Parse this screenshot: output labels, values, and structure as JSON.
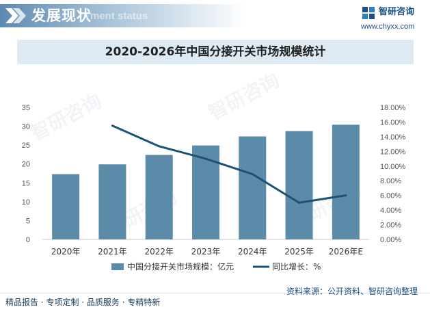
{
  "header": {
    "title": "发展现状",
    "subtitle": "ment status"
  },
  "brand": {
    "name": "智研咨询",
    "url": "www.chyxx.com"
  },
  "watermark": "智研咨询",
  "chart_data": {
    "type": "bar",
    "title": "2020-2026年中国分接开关市场规模统计",
    "categories": [
      "2020年",
      "2021年",
      "2022年",
      "2023年",
      "2024年",
      "2025年",
      "2026年E"
    ],
    "series": [
      {
        "name": "中国分接开关市场规模：亿元",
        "type": "bar",
        "axis": "left",
        "color": "#5b8ba9",
        "values": [
          17.3,
          19.9,
          22.4,
          24.9,
          27.3,
          28.7,
          30.4
        ]
      },
      {
        "name": "同比增长：%",
        "type": "line",
        "axis": "right",
        "color": "#1a5375",
        "values": [
          null,
          15.5,
          12.7,
          11.0,
          8.9,
          5.0,
          6.0
        ]
      }
    ],
    "y_left": {
      "min": 0,
      "max": 35,
      "ticks": [
        "0",
        "5",
        "10",
        "15",
        "20",
        "25",
        "30",
        "35"
      ]
    },
    "y_right": {
      "min": 0,
      "max": 18,
      "ticks": [
        "0.00%",
        "2.00%",
        "4.00%",
        "6.00%",
        "8.00%",
        "10.00%",
        "12.00%",
        "14.00%",
        "16.00%",
        "18.00%"
      ]
    },
    "grid": false,
    "legend_position": "bottom"
  },
  "footer": {
    "left": "精品报告 · 专项定制 · 品质服务 · 专精特新",
    "source": "资料来源：公开资料、智研咨询整理"
  }
}
